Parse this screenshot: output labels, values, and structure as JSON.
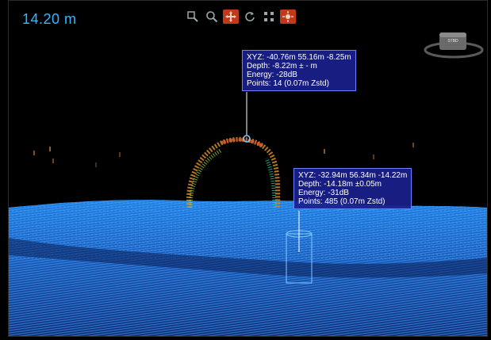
{
  "depth": {
    "value": "14.20 m"
  },
  "toolbar": {
    "tools": [
      {
        "name": "zoom-box-tool",
        "active": false
      },
      {
        "name": "magnifier-tool",
        "active": false
      },
      {
        "name": "pan-tool",
        "active": true
      },
      {
        "name": "rotate-tool",
        "active": false
      },
      {
        "name": "fit-view-tool",
        "active": false
      },
      {
        "name": "select-point-tool",
        "active": true
      }
    ]
  },
  "orientation": {
    "label": "STBD"
  },
  "callouts": [
    {
      "xyz": "XYZ: -40.76m   55.16m   -8.25m",
      "depth": "Depth: -8.22m ± - m",
      "energy": "Energy: -28dB",
      "points": "Points: 14   (0.07m Zstd)"
    },
    {
      "xyz": "XYZ: -32.94m   56.34m   -14.22m",
      "depth": "Depth: -14.18m ±0.05m",
      "energy": "Energy: -31dB",
      "points": "Points: 485   (0.07m Zstd)"
    }
  ],
  "colors": {
    "accent": "#38b6ff",
    "callout_bg": "#1a208c",
    "tool_active": "#c03a1a",
    "seafloor": "#1f6fd6"
  }
}
